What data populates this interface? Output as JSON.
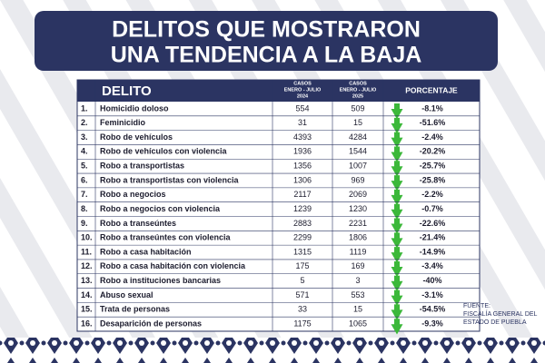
{
  "header": {
    "title": [
      "DELITOS QUE MOSTRARON",
      "UNA TENDENCIA A LA BAJA"
    ]
  },
  "table": {
    "columns": {
      "delito": "DELITO",
      "y2024": [
        "CASOS",
        "ENERO - JULIO",
        "2024"
      ],
      "y2025": [
        "CASOS",
        "ENERO - JULIO",
        "2025"
      ],
      "porcentaje": "PORCENTAJE"
    },
    "rows": [
      [
        "1.",
        "Homicidio doloso",
        "554",
        "509",
        "-8.1%"
      ],
      [
        "2.",
        "Feminicidio",
        "31",
        "15",
        "-51.6%"
      ],
      [
        "3.",
        "Robo de vehículos",
        "4393",
        "4284",
        "-2.4%"
      ],
      [
        "4.",
        "Robo de vehículos con violencia",
        "1936",
        "1544",
        "-20.2%"
      ],
      [
        "5.",
        "Robo a transportistas",
        "1356",
        "1007",
        "-25.7%"
      ],
      [
        "6.",
        "Robo a transportistas con violencia",
        "1306",
        "969",
        "-25.8%"
      ],
      [
        "7.",
        "Robo a negocios",
        "2117",
        "2069",
        "-2.2%"
      ],
      [
        "8.",
        "Robo a negocios con violencia",
        "1239",
        "1230",
        "-0.7%"
      ],
      [
        "9.",
        "Robo a transeúntes",
        "2883",
        "2231",
        "-22.6%"
      ],
      [
        "10.",
        "Robo a transeúntes con violencia",
        "2299",
        "1806",
        "-21.4%"
      ],
      [
        "11.",
        "Robo a casa habitación",
        "1315",
        "1119",
        "-14.9%"
      ],
      [
        "12.",
        "Robo a casa habitación con violencia",
        "175",
        "169",
        "-3.4%"
      ],
      [
        "13.",
        "Robo a instituciones bancarias",
        "5",
        "3",
        "-40%"
      ],
      [
        "14.",
        "Abuso sexual",
        "571",
        "553",
        "-3.1%"
      ],
      [
        "15.",
        "Trata de personas",
        "33",
        "15",
        "-54.5%"
      ],
      [
        "16.",
        "Desaparición de personas",
        "1175",
        "1065",
        "-9.3%"
      ]
    ]
  },
  "source": [
    "FUENTE:",
    "FISCALÍA GENERAL DEL",
    "ESTADO DE PUEBLA"
  ]
}
